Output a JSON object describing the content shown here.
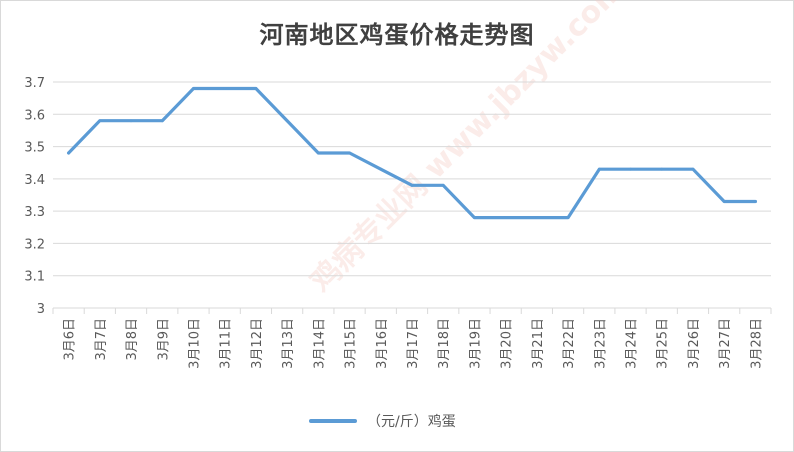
{
  "chart_data": {
    "type": "line",
    "title": "河南地区鸡蛋价格走势图",
    "categories": [
      "3月6日",
      "3月7日",
      "3月8日",
      "3月9日",
      "3月10日",
      "3月11日",
      "3月12日",
      "3月13日",
      "3月14日",
      "3月15日",
      "3月16日",
      "3月17日",
      "3月18日",
      "3月19日",
      "3月20日",
      "3月21日",
      "3月22日",
      "3月23日",
      "3月24日",
      "3月25日",
      "3月26日",
      "3月27日",
      "3月28日"
    ],
    "series": [
      {
        "name": "（元/斤）鸡蛋",
        "color": "#5b9bd5",
        "values": [
          3.48,
          3.58,
          3.58,
          3.58,
          3.68,
          3.68,
          3.68,
          3.58,
          3.48,
          3.48,
          3.43,
          3.38,
          3.38,
          3.28,
          3.28,
          3.28,
          3.28,
          3.43,
          3.43,
          3.43,
          3.43,
          3.33,
          3.33
        ]
      }
    ],
    "ylim": [
      3,
      3.7
    ],
    "yticks": [
      "3",
      "3.1",
      "3.2",
      "3.3",
      "3.4",
      "3.5",
      "3.6",
      "3.7"
    ],
    "xlabel": "",
    "ylabel": "",
    "grid": true,
    "legend_position": "bottom"
  },
  "watermark": "鸡病专业网 www.jbzyw.com"
}
